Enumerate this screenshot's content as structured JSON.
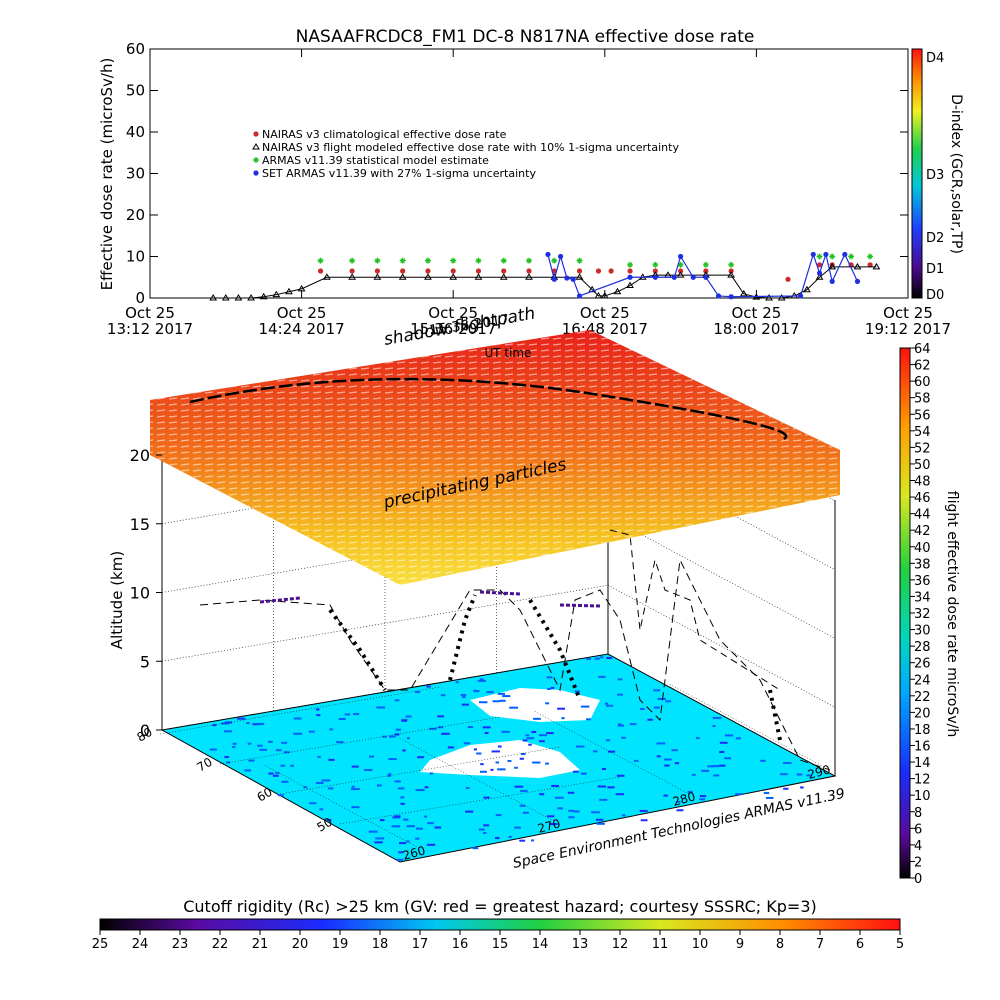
{
  "chart_data": [
    {
      "type": "scatter",
      "title": "NASAAFRCDC8_FM1 DC-8   N817NA effective dose rate",
      "xlabel": "UT time",
      "ylabel": "Effective dose rate (microSv/h)",
      "ylim": [
        0,
        60
      ],
      "yticks": [
        "0",
        "10",
        "20",
        "30",
        "40",
        "50",
        "60"
      ],
      "xtick_dates": [
        "Oct 25",
        "Oct 25",
        "Oct 25",
        "Oct 25",
        "Oct 25",
        "Oct 25"
      ],
      "xtick_times": [
        "13:12 2017",
        "14:24 2017",
        "15:36 2017",
        "16:48 2017",
        "18:00 2017",
        "19:12 2017"
      ],
      "xlim_hours": [
        13.2,
        19.2
      ],
      "grid": false,
      "legend_position": "upper-left",
      "series": [
        {
          "name": "NAIRAS v3 climatological effective dose rate",
          "color": "#cc2b2b",
          "marker": "circle",
          "x": [
            14.55,
            14.8,
            15.0,
            15.2,
            15.4,
            15.6,
            15.8,
            16.0,
            16.2,
            16.4,
            16.6,
            16.75,
            16.85,
            17.0,
            17.2,
            17.4,
            17.6,
            17.8,
            18.25,
            18.5,
            18.6,
            18.75,
            18.9
          ],
          "y": [
            6.5,
            6.5,
            6.5,
            6.5,
            6.5,
            6.5,
            6.5,
            6.5,
            6.5,
            6.5,
            6.5,
            6.5,
            6.5,
            6.5,
            6.5,
            6.5,
            6.5,
            6.5,
            4.5,
            8,
            8,
            8,
            8
          ]
        },
        {
          "name": "NAIRAS v3 flight modeled effective dose rate with 10% 1-sigma uncertainty",
          "color": "#000000",
          "marker": "triangle",
          "x": [
            13.7,
            13.8,
            13.9,
            14.0,
            14.1,
            14.2,
            14.3,
            14.4,
            14.6,
            14.8,
            15.0,
            15.2,
            15.4,
            15.6,
            15.8,
            16.0,
            16.2,
            16.4,
            16.6,
            16.7,
            16.75,
            16.8,
            16.9,
            17.0,
            17.1,
            17.2,
            17.3,
            17.4,
            17.6,
            17.8,
            17.9,
            18.0,
            18.1,
            18.2,
            18.3,
            18.4,
            18.5,
            18.6,
            18.8,
            18.95
          ],
          "y": [
            0,
            0,
            0,
            0,
            0.3,
            0.8,
            1.5,
            2.2,
            5,
            5,
            5,
            5,
            5,
            5,
            5,
            5,
            5,
            5,
            5,
            2,
            0.5,
            0.5,
            1.5,
            3,
            5,
            5.5,
            5.5,
            5.5,
            5.5,
            5.5,
            1,
            0.2,
            0,
            0,
            0.5,
            2,
            5,
            7.5,
            7.5,
            7.5
          ]
        },
        {
          "name": "ARMAS v11.39 statistical model estimate",
          "color": "#22c122",
          "marker": "star",
          "x": [
            14.55,
            14.8,
            15.0,
            15.2,
            15.4,
            15.6,
            15.8,
            16.0,
            16.2,
            16.4,
            16.6,
            17.0,
            17.2,
            17.4,
            17.6,
            17.8,
            18.5,
            18.6,
            18.75,
            18.9
          ],
          "y": [
            9,
            9,
            9,
            9,
            9,
            9,
            9,
            9,
            9,
            9,
            9,
            8,
            8,
            8,
            8,
            8,
            10,
            10,
            10,
            10
          ]
        },
        {
          "name": "SET ARMAS v11.39 with 27% 1-sigma uncertainty",
          "color": "#1f2fe0",
          "marker": "circle",
          "x": [
            16.35,
            16.4,
            16.45,
            16.5,
            16.55,
            16.6,
            17.0,
            17.2,
            17.35,
            17.4,
            17.5,
            17.6,
            17.7,
            17.8,
            18.35,
            18.45,
            18.5,
            18.55,
            18.6,
            18.7,
            18.8
          ],
          "y": [
            10.5,
            4.5,
            10,
            4.8,
            4.5,
            0.5,
            5,
            5,
            5,
            10,
            5,
            5,
            0.5,
            0.3,
            0.5,
            10.5,
            6,
            10.5,
            4,
            10.5,
            4
          ]
        }
      ],
      "colorbar": {
        "label": "D-index (GCR,solar,TP)",
        "ticks": [
          "D0",
          "D1",
          "D2",
          "D3",
          "D4"
        ]
      }
    },
    {
      "type": "scatter",
      "subtype": "3d-flight-track",
      "zlabel": "Altitude (km)",
      "zlim": [
        0,
        20
      ],
      "zticks": [
        "0",
        "5",
        "10",
        "15",
        "20"
      ],
      "latitude_ticks": [
        "80",
        "70",
        "60",
        "50"
      ],
      "longitude_ticks": [
        "260",
        "270",
        "280",
        "290"
      ],
      "annotations": [
        "shadow flightpath",
        "precipitating particles",
        "UT time",
        "15:36 2017"
      ],
      "credit": "Space Environment Technologies ARMAS v11.39",
      "colorbar": {
        "label": "flight effective dose rate microSv/h",
        "range": [
          0,
          64
        ],
        "ticks": [
          "0",
          "2",
          "4",
          "6",
          "8",
          "10",
          "12",
          "14",
          "16",
          "18",
          "20",
          "22",
          "24",
          "26",
          "28",
          "30",
          "32",
          "34",
          "36",
          "38",
          "40",
          "42",
          "44",
          "46",
          "48",
          "50",
          "52",
          "54",
          "56",
          "58",
          "60",
          "62",
          "64"
        ]
      }
    },
    {
      "type": "heatmap",
      "subtype": "colorbar",
      "title": "Cutoff rigidity (Rc) >25 km (GV: red = greatest hazard; courtesy SSSRC; Kp=3)",
      "ticks": [
        "25",
        "24",
        "23",
        "22",
        "21",
        "20",
        "19",
        "18",
        "17",
        "16",
        "15",
        "14",
        "13",
        "12",
        "11",
        "10",
        "9",
        "8",
        "7",
        "6",
        "5"
      ]
    }
  ]
}
